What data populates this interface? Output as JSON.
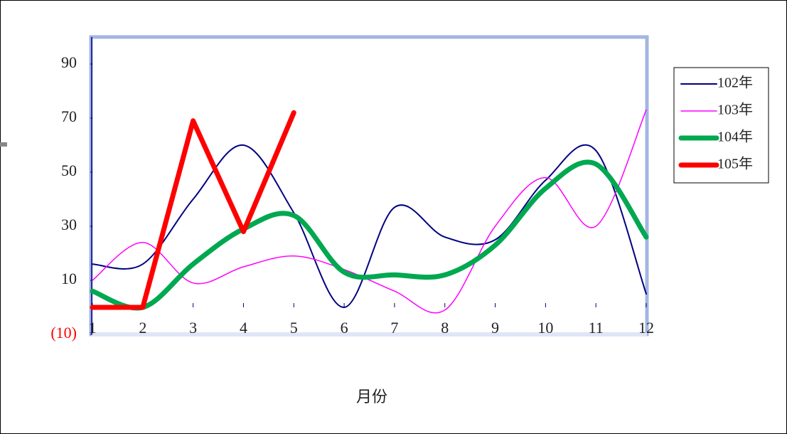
{
  "chart_data": {
    "type": "line",
    "x_label": "月份",
    "x": [
      1,
      2,
      3,
      4,
      5,
      6,
      7,
      8,
      9,
      10,
      11,
      12
    ],
    "xlim": [
      1,
      12
    ],
    "ylim": [
      -10,
      100
    ],
    "yticks": [
      {
        "value": -10,
        "label": "(10)"
      },
      10,
      30,
      50,
      70,
      90
    ],
    "legend": "right",
    "series": [
      {
        "name": "102年",
        "color": "#000080",
        "smooth": true,
        "values": [
          16,
          16,
          40,
          60,
          35,
          0,
          37,
          26,
          25,
          47,
          58,
          5
        ]
      },
      {
        "name": "103年",
        "color": "#ff00ff",
        "smooth": true,
        "values": [
          10,
          24,
          9,
          15,
          19,
          14,
          6,
          -1,
          30,
          48,
          30,
          73
        ]
      },
      {
        "name": "104年",
        "color": "#00a850",
        "smooth": true,
        "values": [
          6,
          0,
          16,
          29,
          34,
          13,
          12,
          12,
          23,
          44,
          53,
          26
        ]
      },
      {
        "name": "105年",
        "color": "#ff0000",
        "smooth": false,
        "values": [
          0,
          0,
          69,
          28,
          72,
          null,
          null,
          null,
          null,
          null,
          null,
          null
        ]
      }
    ]
  }
}
